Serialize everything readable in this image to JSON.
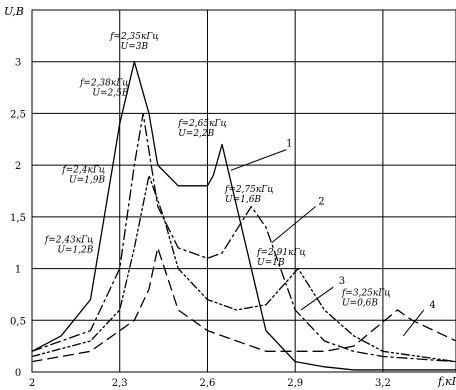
{
  "chart_data": {
    "type": "line",
    "title": "",
    "xlabel": "f,кГц",
    "ylabel": "U,B",
    "xlim": [
      2.0,
      3.45
    ],
    "ylim": [
      0,
      3.5
    ],
    "grid": true,
    "x_ticks": [
      "2",
      "2,3",
      "2,6",
      "2,9",
      "3,2"
    ],
    "y_ticks": [
      "0",
      "0,5",
      "1",
      "1,5",
      "2",
      "2,5",
      "3"
    ],
    "series": [
      {
        "label": "1",
        "style": "solid",
        "points": [
          [
            2.0,
            0.2
          ],
          [
            2.1,
            0.35
          ],
          [
            2.2,
            0.7
          ],
          [
            2.3,
            2.4
          ],
          [
            2.35,
            3.0
          ],
          [
            2.4,
            2.5
          ],
          [
            2.43,
            2.0
          ],
          [
            2.5,
            1.8
          ],
          [
            2.6,
            1.8
          ],
          [
            2.62,
            1.9
          ],
          [
            2.65,
            2.2
          ],
          [
            2.7,
            1.6
          ],
          [
            2.8,
            0.4
          ],
          [
            2.9,
            0.1
          ],
          [
            3.0,
            0.05
          ],
          [
            3.1,
            0.02
          ],
          [
            3.45,
            0.02
          ]
        ]
      },
      {
        "label": "2",
        "style": "dash-dot",
        "points": [
          [
            2.0,
            0.2
          ],
          [
            2.2,
            0.4
          ],
          [
            2.3,
            1.0
          ],
          [
            2.35,
            2.0
          ],
          [
            2.38,
            2.5
          ],
          [
            2.43,
            1.6
          ],
          [
            2.5,
            1.2
          ],
          [
            2.6,
            1.1
          ],
          [
            2.65,
            1.15
          ],
          [
            2.75,
            1.6
          ],
          [
            2.8,
            1.4
          ],
          [
            2.9,
            0.6
          ],
          [
            3.0,
            0.3
          ],
          [
            3.1,
            0.2
          ],
          [
            3.2,
            0.15
          ],
          [
            3.45,
            0.1
          ]
        ]
      },
      {
        "label": "3",
        "style": "dash-dot-dot",
        "points": [
          [
            2.0,
            0.15
          ],
          [
            2.2,
            0.3
          ],
          [
            2.3,
            0.6
          ],
          [
            2.35,
            1.2
          ],
          [
            2.4,
            1.9
          ],
          [
            2.45,
            1.5
          ],
          [
            2.5,
            1.0
          ],
          [
            2.6,
            0.7
          ],
          [
            2.7,
            0.6
          ],
          [
            2.8,
            0.65
          ],
          [
            2.91,
            1.0
          ],
          [
            3.0,
            0.6
          ],
          [
            3.1,
            0.35
          ],
          [
            3.2,
            0.2
          ],
          [
            3.45,
            0.1
          ]
        ]
      },
      {
        "label": "4",
        "style": "dash",
        "points": [
          [
            2.0,
            0.1
          ],
          [
            2.2,
            0.2
          ],
          [
            2.35,
            0.5
          ],
          [
            2.4,
            0.8
          ],
          [
            2.43,
            1.2
          ],
          [
            2.5,
            0.6
          ],
          [
            2.6,
            0.4
          ],
          [
            2.7,
            0.3
          ],
          [
            2.8,
            0.2
          ],
          [
            3.0,
            0.2
          ],
          [
            3.1,
            0.25
          ],
          [
            3.25,
            0.6
          ],
          [
            3.3,
            0.5
          ],
          [
            3.45,
            0.3
          ]
        ]
      }
    ],
    "annotations": [
      {
        "line1": "f=2,35кГц",
        "line2": "U=3B",
        "anchor": "middle",
        "x": 2.35,
        "y": 3.22
      },
      {
        "line1": "f=2,38кГц",
        "line2": "U=2,5B",
        "anchor": "end",
        "x": 2.33,
        "y": 2.77
      },
      {
        "line1": "f=2,4кГц",
        "line2": "U=1,9B",
        "anchor": "end",
        "x": 2.25,
        "y": 1.93
      },
      {
        "line1": "f=2,43кГц",
        "line2": "U=1,2B",
        "anchor": "end",
        "x": 2.21,
        "y": 1.25
      },
      {
        "line1": "f=2,65кГц",
        "line2": "U=2,2B",
        "anchor": "start",
        "x": 2.5,
        "y": 2.38
      },
      {
        "line1": "f=2,75кГц",
        "line2": "U=1,6B",
        "anchor": "start",
        "x": 2.66,
        "y": 1.74
      },
      {
        "line1": "f=2,91кГц",
        "line2": "U=1B",
        "anchor": "start",
        "x": 2.77,
        "y": 1.13
      },
      {
        "line1": "f=3,25кГц",
        "line2": "U=0,6B",
        "anchor": "start",
        "x": 3.06,
        "y": 0.74
      }
    ],
    "series_labels": [
      {
        "text": "1",
        "x": 2.88,
        "y": 2.18,
        "line_from": [
          2.87,
          2.15
        ],
        "line_to": [
          2.68,
          1.95
        ]
      },
      {
        "text": "2",
        "x": 2.99,
        "y": 1.62,
        "line_from": [
          2.97,
          1.6
        ],
        "line_to": [
          2.82,
          1.25
        ]
      },
      {
        "text": "3",
        "x": 3.06,
        "y": 0.85,
        "line_from": [
          3.03,
          0.82
        ],
        "line_to": [
          2.92,
          0.6
        ]
      },
      {
        "text": "4",
        "x": 3.37,
        "y": 0.62,
        "line_from": [
          3.34,
          0.6
        ],
        "line_to": [
          3.27,
          0.35
        ]
      }
    ]
  }
}
